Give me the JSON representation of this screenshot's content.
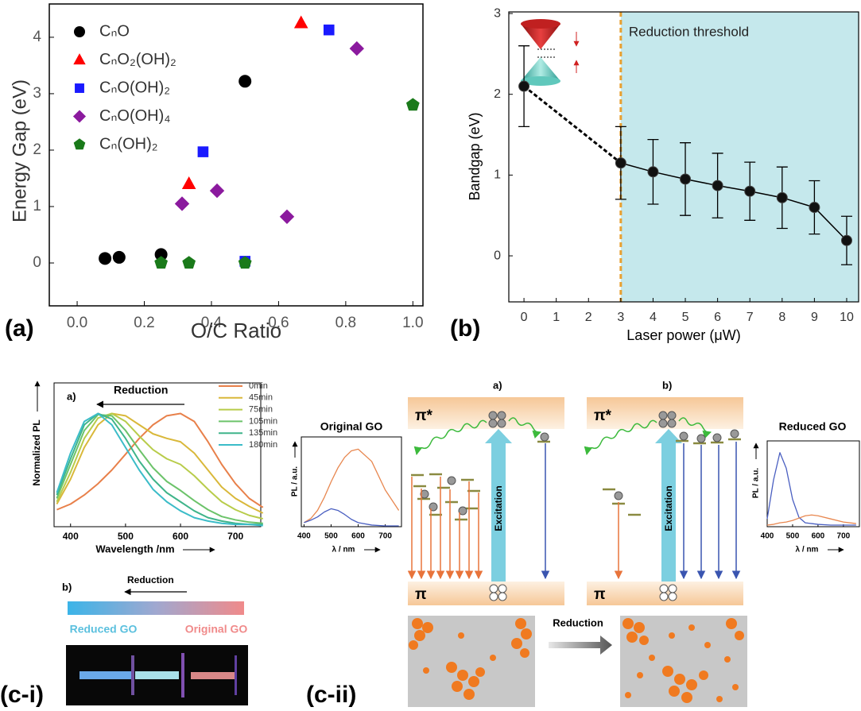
{
  "chart_data": [
    {
      "type": "scatter",
      "xlabel": "O/C Ratio",
      "ylabel": "Energy Gap (eV)",
      "xlim": [
        -0.083,
        1.03
      ],
      "ylim": [
        -0.76,
        4.59
      ],
      "xticks": [
        {
          "value": 0,
          "label": "0.0"
        },
        0.2,
        0.4,
        0.6,
        0.8,
        {
          "value": 1,
          "label": "1.0"
        }
      ],
      "yticks": [
        0,
        1,
        2,
        3,
        4
      ],
      "legend": "upper-left",
      "series": [
        {
          "name": "CₙO",
          "color": "#000000",
          "marker": "circle",
          "x": [
            0.083,
            0.125,
            0.25,
            0.5
          ],
          "values": [
            0.08,
            0.1,
            0.15,
            3.22
          ]
        },
        {
          "name": "CₙO₂(OH)₂",
          "color": "#ff0000",
          "marker": "triangle",
          "x": [
            0.333,
            0.667
          ],
          "values": [
            1.4,
            4.25
          ]
        },
        {
          "name": "CₙO(OH)₂",
          "color": "#1a1aff",
          "marker": "square",
          "x": [
            0.375,
            0.5,
            0.75
          ],
          "values": [
            1.97,
            0.03,
            4.13
          ]
        },
        {
          "name": "CₙO(OH)₄",
          "color": "#8b1a9e",
          "marker": "diamond",
          "x": [
            0.3125,
            0.4167,
            0.625,
            0.833
          ],
          "values": [
            1.05,
            1.28,
            0.82,
            3.8
          ]
        },
        {
          "name": "Cₙ(OH)₂",
          "color": "#1a7a1a",
          "marker": "pentagon",
          "x": [
            0.25,
            0.333,
            0.5,
            1.0
          ],
          "values": [
            0,
            0,
            0,
            2.8
          ]
        }
      ]
    },
    {
      "type": "errorbar",
      "xlabel": "Laser power (μW)",
      "ylabel": "Bandgap (eV)",
      "xlim": [
        -0.47,
        10.37
      ],
      "ylim": [
        -0.57,
        3.02
      ],
      "xticks": [
        0,
        1,
        2,
        3,
        4,
        5,
        6,
        7,
        8,
        9,
        10
      ],
      "yticks": [
        0,
        1,
        2,
        3
      ],
      "threshold": 3,
      "threshold_color": "#e8a030",
      "shade_color": "#c5e8ec",
      "annotation": "Reduction threshold",
      "color": "#000000",
      "x": [
        0,
        3,
        4,
        5,
        6,
        7,
        8,
        9,
        10
      ],
      "values": [
        2.1,
        1.15,
        1.04,
        0.95,
        0.87,
        0.8,
        0.72,
        0.6,
        0.19
      ],
      "errors": [
        0.5,
        0.45,
        0.4,
        0.45,
        0.4,
        0.36,
        0.38,
        0.33,
        0.3
      ]
    },
    {
      "type": "line",
      "panel": "a)",
      "xlabel": "Wavelength /nm",
      "ylabel": "Normalized PL",
      "annotation": "Reduction",
      "xlim": [
        370,
        746
      ],
      "ylim": [
        0,
        1.27
      ],
      "xticks": [
        400,
        500,
        600,
        700
      ],
      "x": [
        375,
        400,
        425,
        450,
        475,
        500,
        525,
        550,
        575,
        600,
        625,
        650,
        675,
        700,
        725,
        750
      ],
      "series": [
        {
          "name": "0min",
          "color": "#e8804a",
          "values": [
            0.15,
            0.2,
            0.28,
            0.38,
            0.5,
            0.64,
            0.78,
            0.9,
            0.98,
            1.0,
            0.93,
            0.75,
            0.55,
            0.38,
            0.25,
            0.17
          ]
        },
        {
          "name": "45min",
          "color": "#d9b83a",
          "values": [
            0.2,
            0.42,
            0.7,
            0.9,
            1.0,
            0.98,
            0.9,
            0.82,
            0.78,
            0.75,
            0.65,
            0.5,
            0.35,
            0.25,
            0.18,
            0.12
          ]
        },
        {
          "name": "75min",
          "color": "#b8cc4a",
          "values": [
            0.22,
            0.48,
            0.78,
            0.96,
            1.0,
            0.93,
            0.8,
            0.68,
            0.6,
            0.55,
            0.45,
            0.33,
            0.22,
            0.15,
            0.1,
            0.07
          ]
        },
        {
          "name": "105min",
          "color": "#6cc36a",
          "values": [
            0.25,
            0.55,
            0.85,
            0.99,
            0.98,
            0.85,
            0.68,
            0.52,
            0.4,
            0.32,
            0.23,
            0.15,
            0.09,
            0.06,
            0.04,
            0.03
          ]
        },
        {
          "name": "135min",
          "color": "#3fb48a",
          "values": [
            0.28,
            0.6,
            0.9,
            1.0,
            0.95,
            0.78,
            0.58,
            0.42,
            0.3,
            0.22,
            0.14,
            0.08,
            0.05,
            0.03,
            0.02,
            0.02
          ]
        },
        {
          "name": "180min",
          "color": "#3bbcc8",
          "values": [
            0.3,
            0.65,
            0.93,
            1.0,
            0.9,
            0.7,
            0.5,
            0.33,
            0.22,
            0.14,
            0.08,
            0.05,
            0.03,
            0.02,
            0.02,
            0.01
          ]
        }
      ]
    },
    {
      "type": "line",
      "title": "Original GO",
      "xlabel": "λ / nm",
      "ylabel": "PL / a.u.",
      "xlim": [
        390,
        760
      ],
      "ylim": [
        0,
        1.1
      ],
      "xticks": [
        400,
        500,
        600,
        700
      ],
      "x": [
        400,
        425,
        450,
        475,
        500,
        525,
        550,
        575,
        600,
        650,
        700,
        750
      ],
      "series": [
        {
          "color": "#e8874f",
          "values": [
            0.05,
            0.1,
            0.2,
            0.36,
            0.55,
            0.72,
            0.85,
            0.93,
            0.95,
            0.8,
            0.45,
            0.2
          ]
        },
        {
          "color": "#4a5fc1",
          "values": [
            0.05,
            0.08,
            0.12,
            0.18,
            0.22,
            0.2,
            0.15,
            0.09,
            0.05,
            0.02,
            0.01,
            0.01
          ]
        }
      ]
    },
    {
      "type": "line",
      "title": "Reduced GO",
      "xlabel": "λ / nm",
      "ylabel": "PL / a.u.",
      "xlim": [
        400,
        763
      ],
      "ylim": [
        0,
        1.1
      ],
      "xticks": [
        400,
        500,
        600,
        700
      ],
      "x": [
        400,
        425,
        450,
        475,
        500,
        525,
        550,
        575,
        600,
        650,
        700,
        750
      ],
      "series": [
        {
          "color": "#4a5fc1",
          "values": [
            0.1,
            0.6,
            0.95,
            0.75,
            0.35,
            0.12,
            0.05,
            0.04,
            0.03,
            0.02,
            0.02,
            0.02
          ]
        },
        {
          "color": "#e8874f",
          "values": [
            0.02,
            0.03,
            0.05,
            0.06,
            0.08,
            0.11,
            0.14,
            0.15,
            0.14,
            0.1,
            0.06,
            0.04
          ]
        }
      ]
    }
  ],
  "figure": {
    "panel_labels": [
      "(a)",
      "(b)",
      "(c-i)",
      "(c-ii)"
    ],
    "gradient": {
      "label": "b)",
      "arrow": "Reduction",
      "left": "Reduced GO",
      "right": "Original GO"
    },
    "diagram": {
      "panels": [
        {
          "label": "a)",
          "top": "π*",
          "bottom": "π",
          "excitation": "Excitation"
        },
        {
          "label": "b)",
          "top": "π*",
          "bottom": "π",
          "excitation": "Excitation"
        }
      ],
      "reduction": "Reduction"
    }
  }
}
